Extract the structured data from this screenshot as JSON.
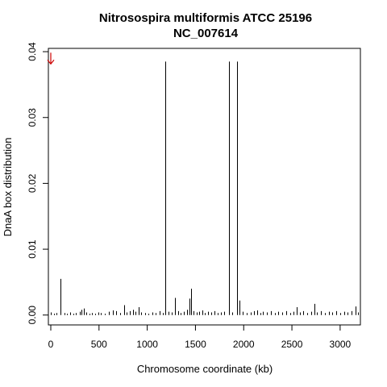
{
  "chart_data": {
    "type": "bar",
    "title": "Nitrosospira multiformis ATCC 25196",
    "subtitle": "NC_007614",
    "xlabel": "Chromosome coordinate (kb)",
    "ylabel": "DnaA box distribution",
    "xlim": [
      -25,
      3210
    ],
    "ylim": [
      -0.0015,
      0.0405
    ],
    "x_ticks": [
      0,
      500,
      1000,
      1500,
      2000,
      2500,
      3000
    ],
    "y_ticks": [
      0.0,
      0.01,
      0.02,
      0.03,
      0.04
    ],
    "y_tick_labels": [
      "0.00",
      "0.01",
      "0.02",
      "0.03",
      "0.04"
    ],
    "grid": false,
    "origin_marker": {
      "x": 0,
      "y": 0.0385,
      "color": "#cc0000",
      "symbol": "down-arrow"
    },
    "series": [
      {
        "color": "#000000",
        "major_peaks": [
          {
            "x": 100,
            "y": 0.0055
          },
          {
            "x": 1190,
            "y": 0.0385
          },
          {
            "x": 1290,
            "y": 0.0026
          },
          {
            "x": 1435,
            "y": 0.0025
          },
          {
            "x": 1455,
            "y": 0.004
          },
          {
            "x": 1845,
            "y": 0.0385
          },
          {
            "x": 1935,
            "y": 0.0385
          },
          {
            "x": 1960,
            "y": 0.0022
          },
          {
            "x": 2730,
            "y": 0.0017
          },
          {
            "x": 2550,
            "y": 0.0012
          },
          {
            "x": 3160,
            "y": 0.0013
          }
        ],
        "minor_peaks": [
          {
            "x": 0,
            "y": 0.0004
          },
          {
            "x": 30,
            "y": 0.0002
          },
          {
            "x": 60,
            "y": 0.0003
          },
          {
            "x": 140,
            "y": 0.0003
          },
          {
            "x": 170,
            "y": 0.0002
          },
          {
            "x": 200,
            "y": 0.0004
          },
          {
            "x": 230,
            "y": 0.0002
          },
          {
            "x": 260,
            "y": 0.0003
          },
          {
            "x": 300,
            "y": 0.0005
          },
          {
            "x": 320,
            "y": 0.0008
          },
          {
            "x": 340,
            "y": 0.001
          },
          {
            "x": 370,
            "y": 0.0004
          },
          {
            "x": 400,
            "y": 0.0002
          },
          {
            "x": 430,
            "y": 0.0003
          },
          {
            "x": 460,
            "y": 0.0002
          },
          {
            "x": 490,
            "y": 0.0004
          },
          {
            "x": 520,
            "y": 0.0003
          },
          {
            "x": 560,
            "y": 0.0002
          },
          {
            "x": 600,
            "y": 0.0005
          },
          {
            "x": 640,
            "y": 0.0007
          },
          {
            "x": 680,
            "y": 0.0006
          },
          {
            "x": 720,
            "y": 0.0003
          },
          {
            "x": 760,
            "y": 0.0015
          },
          {
            "x": 790,
            "y": 0.0004
          },
          {
            "x": 820,
            "y": 0.0006
          },
          {
            "x": 850,
            "y": 0.0008
          },
          {
            "x": 880,
            "y": 0.0005
          },
          {
            "x": 910,
            "y": 0.0012
          },
          {
            "x": 940,
            "y": 0.0004
          },
          {
            "x": 980,
            "y": 0.0003
          },
          {
            "x": 1010,
            "y": 0.0002
          },
          {
            "x": 1050,
            "y": 0.0004
          },
          {
            "x": 1090,
            "y": 0.0003
          },
          {
            "x": 1130,
            "y": 0.0006
          },
          {
            "x": 1160,
            "y": 0.0003
          },
          {
            "x": 1220,
            "y": 0.0005
          },
          {
            "x": 1250,
            "y": 0.0004
          },
          {
            "x": 1320,
            "y": 0.0006
          },
          {
            "x": 1350,
            "y": 0.0003
          },
          {
            "x": 1380,
            "y": 0.0005
          },
          {
            "x": 1410,
            "y": 0.0008
          },
          {
            "x": 1480,
            "y": 0.0006
          },
          {
            "x": 1510,
            "y": 0.0004
          },
          {
            "x": 1540,
            "y": 0.0005
          },
          {
            "x": 1570,
            "y": 0.0007
          },
          {
            "x": 1600,
            "y": 0.0003
          },
          {
            "x": 1630,
            "y": 0.0005
          },
          {
            "x": 1660,
            "y": 0.0004
          },
          {
            "x": 1700,
            "y": 0.0006
          },
          {
            "x": 1730,
            "y": 0.0003
          },
          {
            "x": 1760,
            "y": 0.0004
          },
          {
            "x": 1800,
            "y": 0.0005
          },
          {
            "x": 1880,
            "y": 0.0004
          },
          {
            "x": 1990,
            "y": 0.0005
          },
          {
            "x": 2030,
            "y": 0.0003
          },
          {
            "x": 2070,
            "y": 0.0004
          },
          {
            "x": 2110,
            "y": 0.0006
          },
          {
            "x": 2140,
            "y": 0.0007
          },
          {
            "x": 2170,
            "y": 0.0003
          },
          {
            "x": 2200,
            "y": 0.0005
          },
          {
            "x": 2240,
            "y": 0.0004
          },
          {
            "x": 2280,
            "y": 0.0006
          },
          {
            "x": 2320,
            "y": 0.0003
          },
          {
            "x": 2360,
            "y": 0.0005
          },
          {
            "x": 2400,
            "y": 0.0004
          },
          {
            "x": 2440,
            "y": 0.0006
          },
          {
            "x": 2480,
            "y": 0.0003
          },
          {
            "x": 2520,
            "y": 0.0005
          },
          {
            "x": 2580,
            "y": 0.0004
          },
          {
            "x": 2620,
            "y": 0.0006
          },
          {
            "x": 2660,
            "y": 0.0003
          },
          {
            "x": 2700,
            "y": 0.0005
          },
          {
            "x": 2760,
            "y": 0.0004
          },
          {
            "x": 2800,
            "y": 0.0006
          },
          {
            "x": 2840,
            "y": 0.0003
          },
          {
            "x": 2880,
            "y": 0.0005
          },
          {
            "x": 2920,
            "y": 0.0004
          },
          {
            "x": 2960,
            "y": 0.0006
          },
          {
            "x": 3000,
            "y": 0.0003
          },
          {
            "x": 3040,
            "y": 0.0005
          },
          {
            "x": 3080,
            "y": 0.0004
          },
          {
            "x": 3120,
            "y": 0.0006
          },
          {
            "x": 3185,
            "y": 0.0004
          }
        ]
      }
    ]
  }
}
